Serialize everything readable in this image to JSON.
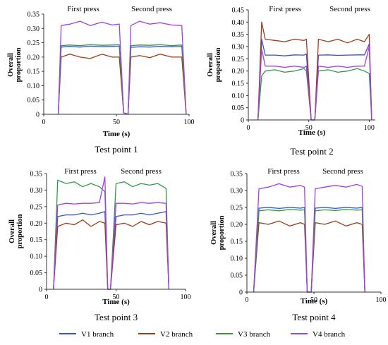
{
  "legend": [
    {
      "label": "V1 branch",
      "color": "#3a4fd8"
    },
    {
      "label": "V2 branch",
      "color": "#9c3d1a"
    },
    {
      "label": "V3 branch",
      "color": "#2e9b45"
    },
    {
      "label": "V4 branch",
      "color": "#a53fe0"
    }
  ],
  "chart_data": [
    {
      "type": "line",
      "title": "Test point 1",
      "xlabel": "Time (s)",
      "ylabel": "Overall proportion",
      "xlim": [
        0,
        100
      ],
      "ylim": [
        0,
        0.35
      ],
      "xticks": [
        0,
        50,
        100
      ],
      "yticks": [
        0,
        0.05,
        0.1,
        0.15,
        0.2,
        0.25,
        0.3,
        0.35
      ],
      "yticklabels": [
        "0",
        "0.05",
        "0.10",
        "0.15",
        "0.20",
        "0.25",
        "0.30",
        "0.35"
      ],
      "annotations": [
        "First press",
        "Second press"
      ],
      "series": [
        {
          "name": "V1 branch",
          "x": [
            10,
            12,
            18,
            25,
            32,
            40,
            47,
            52,
            55,
            58,
            60,
            66,
            73,
            80,
            88,
            95,
            98
          ],
          "y": [
            0,
            0.235,
            0.237,
            0.235,
            0.238,
            0.236,
            0.237,
            0.238,
            0.005,
            0,
            0.234,
            0.236,
            0.235,
            0.237,
            0.236,
            0.237,
            0
          ]
        },
        {
          "name": "V2 branch",
          "x": [
            10,
            12,
            18,
            25,
            32,
            40,
            47,
            52,
            55,
            58,
            60,
            66,
            73,
            80,
            88,
            95,
            98
          ],
          "y": [
            0,
            0.2,
            0.21,
            0.2,
            0.195,
            0.21,
            0.2,
            0.2,
            0.005,
            0,
            0.2,
            0.205,
            0.198,
            0.21,
            0.2,
            0.2,
            0
          ]
        },
        {
          "name": "V3 branch",
          "x": [
            10,
            12,
            18,
            25,
            32,
            40,
            47,
            52,
            55,
            58,
            60,
            66,
            73,
            80,
            88,
            95,
            98
          ],
          "y": [
            0,
            0.24,
            0.242,
            0.24,
            0.243,
            0.241,
            0.242,
            0.243,
            0.005,
            0,
            0.24,
            0.242,
            0.241,
            0.243,
            0.24,
            0.242,
            0
          ]
        },
        {
          "name": "V4 branch",
          "x": [
            10,
            12,
            18,
            25,
            32,
            40,
            47,
            52,
            55,
            58,
            60,
            66,
            73,
            80,
            88,
            95,
            98
          ],
          "y": [
            0,
            0.31,
            0.315,
            0.325,
            0.31,
            0.322,
            0.312,
            0.315,
            0.005,
            0,
            0.31,
            0.325,
            0.315,
            0.32,
            0.312,
            0.31,
            0
          ]
        }
      ]
    },
    {
      "type": "line",
      "title": "Test point 2",
      "xlabel": "Time (s)",
      "ylabel": "Overall proportion",
      "xlim": [
        0,
        105
      ],
      "ylim": [
        0,
        0.45
      ],
      "xticks": [
        0,
        50,
        100
      ],
      "yticks": [
        0,
        0.05,
        0.1,
        0.15,
        0.2,
        0.25,
        0.3,
        0.35,
        0.4,
        0.45
      ],
      "yticklabels": [
        "0",
        "0.05",
        "0.10",
        "0.15",
        "0.20",
        "0.25",
        "0.30",
        "0.35",
        "0.40",
        "0.45"
      ],
      "annotations": [
        "First press",
        "Second press"
      ],
      "series": [
        {
          "name": "V1 branch",
          "x": [
            8,
            11,
            14,
            22,
            30,
            38,
            46,
            48,
            52,
            55,
            58,
            66,
            74,
            82,
            90,
            96,
            100,
            102
          ],
          "y": [
            0,
            0.33,
            0.265,
            0.265,
            0.262,
            0.266,
            0.265,
            0.27,
            0,
            0,
            0.265,
            0.266,
            0.264,
            0.265,
            0.266,
            0.266,
            0.31,
            0
          ]
        },
        {
          "name": "V2 branch",
          "x": [
            8,
            11,
            14,
            22,
            30,
            38,
            46,
            48,
            52,
            55,
            58,
            66,
            74,
            82,
            90,
            96,
            100,
            102
          ],
          "y": [
            0,
            0.4,
            0.33,
            0.325,
            0.32,
            0.33,
            0.325,
            0.33,
            0,
            0,
            0.33,
            0.32,
            0.33,
            0.315,
            0.33,
            0.32,
            0.35,
            0
          ]
        },
        {
          "name": "V3 branch",
          "x": [
            8,
            11,
            14,
            22,
            30,
            38,
            46,
            48,
            52,
            55,
            58,
            66,
            74,
            82,
            90,
            96,
            100,
            102
          ],
          "y": [
            0,
            0.18,
            0.2,
            0.205,
            0.195,
            0.2,
            0.21,
            0.2,
            0,
            0,
            0.2,
            0.205,
            0.195,
            0.2,
            0.21,
            0.2,
            0.19,
            0
          ]
        },
        {
          "name": "V4 branch",
          "x": [
            8,
            11,
            14,
            22,
            30,
            38,
            46,
            48,
            52,
            55,
            58,
            66,
            74,
            82,
            90,
            96,
            100,
            102
          ],
          "y": [
            0,
            0.29,
            0.22,
            0.22,
            0.215,
            0.22,
            0.215,
            0.22,
            0,
            0,
            0.22,
            0.215,
            0.22,
            0.215,
            0.22,
            0.22,
            0.3,
            0
          ]
        }
      ]
    },
    {
      "type": "line",
      "title": "Test point 3",
      "xlabel": "Time (s)",
      "ylabel": "Overall proportion",
      "xlim": [
        0,
        100
      ],
      "ylim": [
        0,
        0.35
      ],
      "xticks": [
        0,
        50,
        100
      ],
      "yticks": [
        0,
        0.05,
        0.1,
        0.15,
        0.2,
        0.25,
        0.3,
        0.35
      ],
      "yticklabels": [
        "0",
        "0.05",
        "0.10",
        "0.15",
        "0.20",
        "0.25",
        "0.30",
        "0.35"
      ],
      "annotations": [
        "First press",
        "Second press"
      ],
      "series": [
        {
          "name": "V1 branch",
          "x": [
            5,
            8,
            14,
            20,
            26,
            32,
            38,
            42,
            44,
            46,
            50,
            56,
            62,
            68,
            74,
            80,
            86,
            88
          ],
          "y": [
            0,
            0.22,
            0.225,
            0.225,
            0.23,
            0.225,
            0.23,
            0.235,
            0,
            0,
            0.22,
            0.225,
            0.225,
            0.23,
            0.225,
            0.23,
            0.235,
            0
          ]
        },
        {
          "name": "V2 branch",
          "x": [
            5,
            8,
            14,
            20,
            26,
            32,
            38,
            42,
            44,
            46,
            50,
            56,
            62,
            68,
            74,
            80,
            86,
            88
          ],
          "y": [
            0,
            0.19,
            0.2,
            0.195,
            0.21,
            0.19,
            0.205,
            0.2,
            0,
            0,
            0.195,
            0.2,
            0.19,
            0.205,
            0.195,
            0.205,
            0.2,
            0
          ]
        },
        {
          "name": "V3 branch",
          "x": [
            5,
            8,
            14,
            20,
            26,
            32,
            38,
            42,
            44,
            46,
            50,
            56,
            62,
            68,
            74,
            80,
            86,
            88
          ],
          "y": [
            0,
            0.33,
            0.32,
            0.325,
            0.31,
            0.32,
            0.31,
            0.295,
            0,
            0,
            0.32,
            0.325,
            0.31,
            0.32,
            0.315,
            0.32,
            0.305,
            0
          ]
        },
        {
          "name": "V4 branch",
          "x": [
            5,
            8,
            14,
            20,
            26,
            32,
            38,
            42,
            44,
            46,
            50,
            56,
            62,
            68,
            74,
            80,
            86,
            88
          ],
          "y": [
            0,
            0.255,
            0.26,
            0.258,
            0.26,
            0.26,
            0.262,
            0.34,
            0,
            0,
            0.26,
            0.26,
            0.258,
            0.262,
            0.26,
            0.262,
            0.26,
            0
          ]
        }
      ]
    },
    {
      "type": "line",
      "title": "Test point 4",
      "xlabel": "Time (s)",
      "ylabel": "Overall proportion",
      "xlim": [
        0,
        100
      ],
      "ylim": [
        0,
        0.35
      ],
      "xticks": [
        0,
        50,
        100
      ],
      "yticks": [
        0,
        0.05,
        0.1,
        0.15,
        0.2,
        0.25,
        0.3,
        0.35
      ],
      "yticklabels": [
        "0",
        "0.05",
        "0.10",
        "0.15",
        "0.20",
        "0.25",
        "0.30",
        "0.35"
      ],
      "annotations": [
        "First press",
        "Second press"
      ],
      "series": [
        {
          "name": "V1 branch",
          "x": [
            5,
            9,
            16,
            24,
            32,
            40,
            43,
            45,
            48,
            51,
            58,
            66,
            74,
            82,
            86,
            88
          ],
          "y": [
            0,
            0.248,
            0.25,
            0.247,
            0.25,
            0.248,
            0.25,
            0,
            0,
            0.248,
            0.25,
            0.247,
            0.25,
            0.248,
            0.25,
            0
          ]
        },
        {
          "name": "V2 branch",
          "x": [
            5,
            9,
            16,
            24,
            32,
            40,
            43,
            45,
            48,
            51,
            58,
            66,
            74,
            82,
            86,
            88
          ],
          "y": [
            0,
            0.205,
            0.2,
            0.21,
            0.195,
            0.205,
            0.2,
            0,
            0,
            0.205,
            0.2,
            0.21,
            0.195,
            0.205,
            0.2,
            0
          ]
        },
        {
          "name": "V3 branch",
          "x": [
            5,
            9,
            16,
            24,
            32,
            40,
            43,
            45,
            48,
            51,
            58,
            66,
            74,
            82,
            86,
            88
          ],
          "y": [
            0,
            0.24,
            0.243,
            0.24,
            0.244,
            0.242,
            0.243,
            0,
            0,
            0.24,
            0.243,
            0.241,
            0.244,
            0.242,
            0.243,
            0
          ]
        },
        {
          "name": "V4 branch",
          "x": [
            5,
            9,
            16,
            24,
            32,
            40,
            43,
            45,
            48,
            51,
            58,
            66,
            74,
            82,
            86,
            88
          ],
          "y": [
            0,
            0.305,
            0.31,
            0.32,
            0.31,
            0.315,
            0.31,
            0,
            0,
            0.305,
            0.31,
            0.315,
            0.31,
            0.318,
            0.312,
            0
          ]
        }
      ]
    }
  ]
}
